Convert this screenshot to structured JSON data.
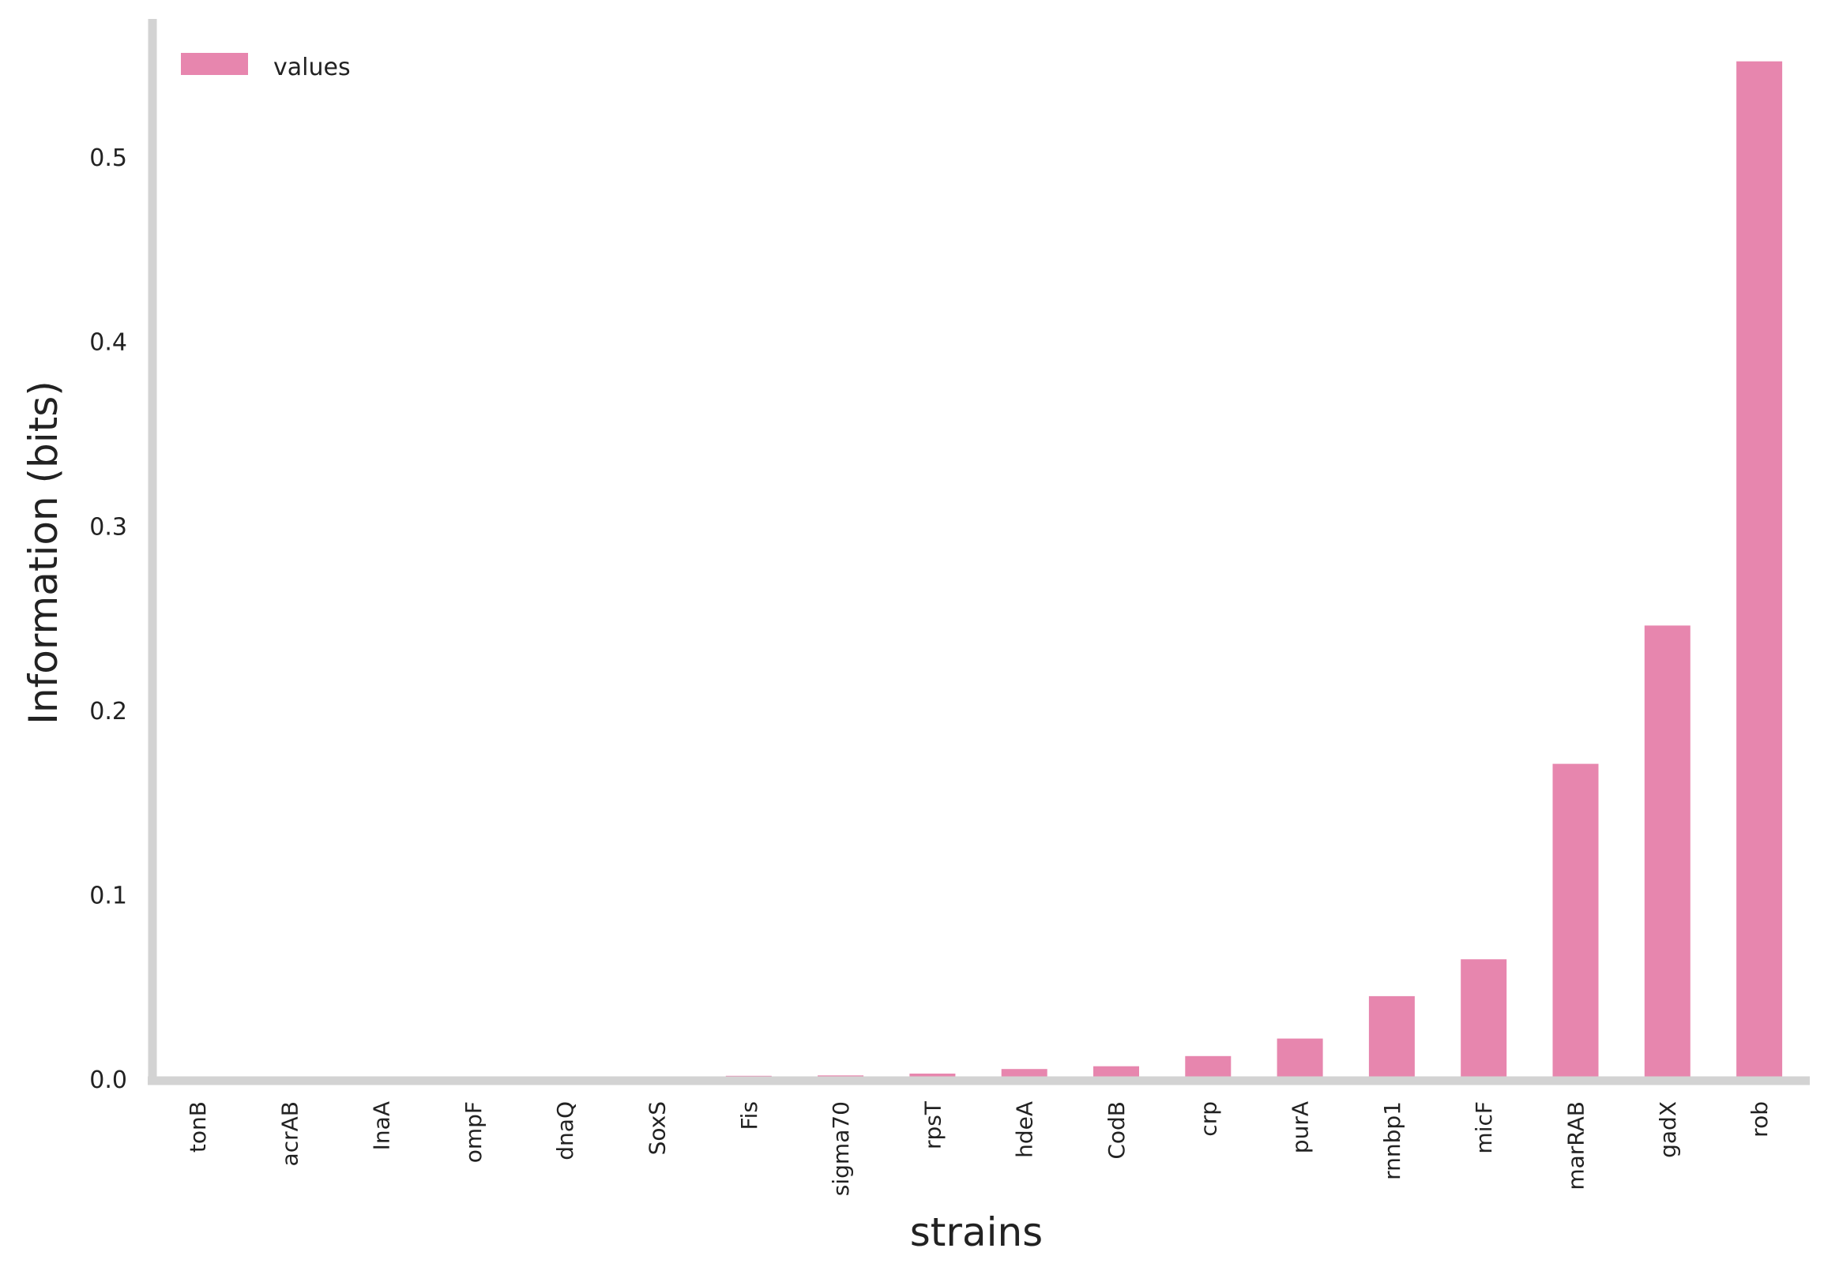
{
  "chart_data": {
    "type": "bar",
    "title": "",
    "xlabel": "strains",
    "ylabel": "Information (bits)",
    "categories": [
      "tonB",
      "acrAB",
      "InaA",
      "ompF",
      "dnaQ",
      "SoxS",
      "Fis",
      "sigma70",
      "rpsT",
      "hdeA",
      "CodB",
      "crp",
      "purA",
      "rnnbp1",
      "micF",
      "marRAB",
      "gadX",
      "rob"
    ],
    "series": [
      {
        "name": "values",
        "values": [
          0.0,
          0.0,
          0.0,
          0.0,
          0.0,
          0.0005,
          0.0018,
          0.002,
          0.003,
          0.0055,
          0.007,
          0.0125,
          0.022,
          0.045,
          0.065,
          0.171,
          0.246,
          0.552
        ],
        "color": "#e786ae"
      }
    ],
    "yticks": [
      "0.0",
      "0.1",
      "0.2",
      "0.3",
      "0.4",
      "0.5"
    ],
    "ylim": [
      0,
      0.575
    ],
    "grid": false,
    "legend_position": "top-left",
    "axis_color": "#d3d3d3"
  }
}
